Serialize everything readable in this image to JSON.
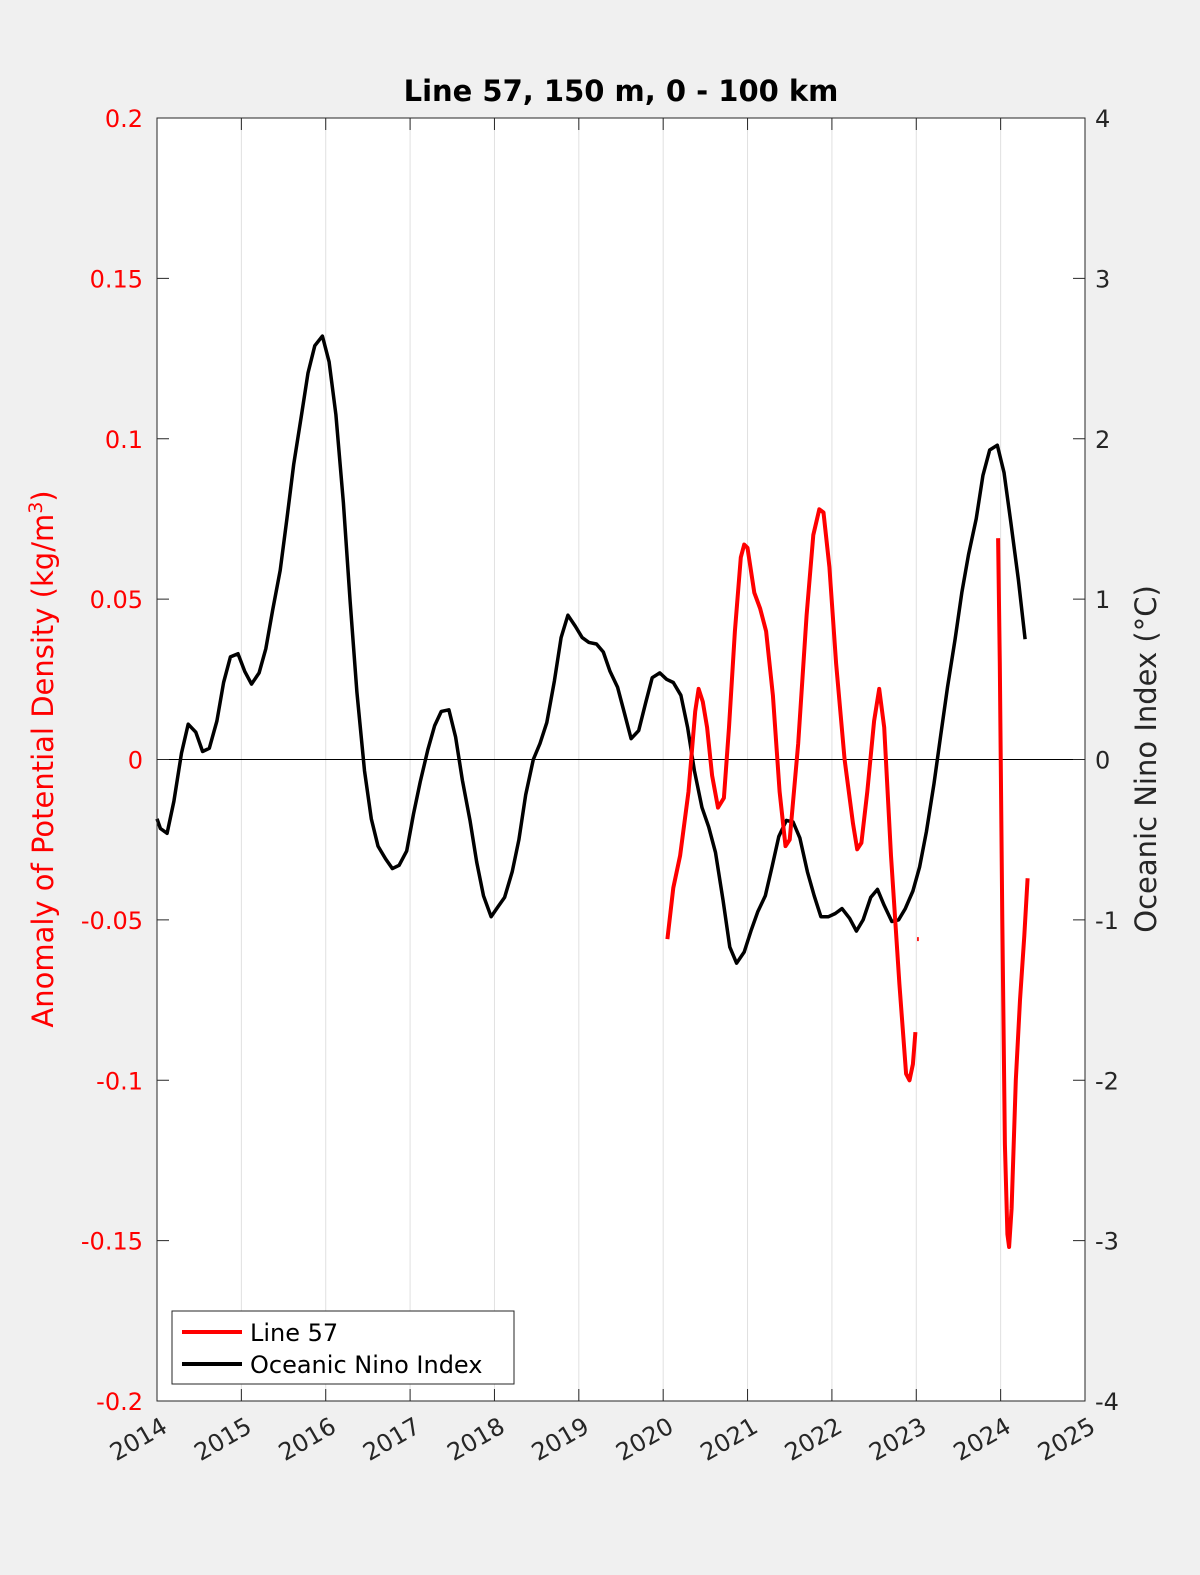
{
  "chart_data": {
    "type": "line",
    "title": "Line 57, 150 m, 0 - 100 km",
    "ylabel_left": {
      "text": "Anomaly of Potential Density (kg/m",
      "sup": "3",
      "tail": ")"
    },
    "ylabel_right": "Oceanic Nino Index (°C)",
    "xlim": [
      2014,
      2025
    ],
    "ylim_left": [
      -0.2,
      0.2
    ],
    "ylim_right": [
      -4,
      4
    ],
    "x_ticks": [
      "2014",
      "2015",
      "2016",
      "2017",
      "2018",
      "2019",
      "2020",
      "2021",
      "2022",
      "2023",
      "2024",
      "2025"
    ],
    "y_ticks_left": [
      "0.2",
      "0.15",
      "0.1",
      "0.05",
      "0",
      "-0.05",
      "-0.1",
      "-0.15",
      "-0.2"
    ],
    "y_ticks_right": [
      "4",
      "3",
      "2",
      "1",
      "0",
      "-1",
      "-2",
      "-3",
      "-4"
    ],
    "grid": "vertical",
    "legend_position": "bottom-left",
    "colors": {
      "line57": "#ff0000",
      "oni": "#000000",
      "zero_line": "#000000",
      "grid": "#e0e0e0"
    },
    "series": [
      {
        "name": "Line 57",
        "axis": "left",
        "segments": [
          [
            [
              2020.05,
              -0.056
            ],
            [
              2020.12,
              -0.04
            ],
            [
              2020.2,
              -0.03
            ],
            [
              2020.3,
              -0.01
            ],
            [
              2020.38,
              0.015
            ],
            [
              2020.42,
              0.022
            ],
            [
              2020.47,
              0.018
            ],
            [
              2020.52,
              0.01
            ],
            [
              2020.58,
              -0.005
            ],
            [
              2020.65,
              -0.015
            ],
            [
              2020.72,
              -0.012
            ],
            [
              2020.78,
              0.01
            ],
            [
              2020.85,
              0.04
            ],
            [
              2020.92,
              0.063
            ],
            [
              2020.96,
              0.067
            ],
            [
              2021.0,
              0.066
            ],
            [
              2021.08,
              0.052
            ],
            [
              2021.15,
              0.047
            ],
            [
              2021.22,
              0.04
            ],
            [
              2021.3,
              0.02
            ],
            [
              2021.38,
              -0.01
            ],
            [
              2021.45,
              -0.027
            ],
            [
              2021.5,
              -0.025
            ],
            [
              2021.6,
              0.005
            ],
            [
              2021.7,
              0.045
            ],
            [
              2021.78,
              0.07
            ],
            [
              2021.85,
              0.078
            ],
            [
              2021.9,
              0.077
            ],
            [
              2021.97,
              0.06
            ],
            [
              2022.05,
              0.03
            ],
            [
              2022.15,
              0.0
            ],
            [
              2022.25,
              -0.02
            ],
            [
              2022.3,
              -0.028
            ],
            [
              2022.35,
              -0.026
            ],
            [
              2022.42,
              -0.01
            ],
            [
              2022.5,
              0.012
            ],
            [
              2022.56,
              0.022
            ],
            [
              2022.62,
              0.01
            ],
            [
              2022.7,
              -0.03
            ],
            [
              2022.8,
              -0.07
            ],
            [
              2022.88,
              -0.098
            ],
            [
              2022.92,
              -0.1
            ],
            [
              2022.96,
              -0.095
            ],
            [
              2022.99,
              -0.085
            ]
          ],
          [
            [
              2023.01,
              -0.056
            ],
            [
              2023.03,
              -0.056
            ]
          ],
          [
            [
              2023.97,
              0.069
            ],
            [
              2023.99,
              0.03
            ],
            [
              2024.02,
              -0.05
            ],
            [
              2024.05,
              -0.12
            ],
            [
              2024.08,
              -0.148
            ],
            [
              2024.1,
              -0.152
            ],
            [
              2024.13,
              -0.14
            ],
            [
              2024.18,
              -0.1
            ],
            [
              2024.23,
              -0.075
            ],
            [
              2024.28,
              -0.055
            ],
            [
              2024.32,
              -0.037
            ]
          ]
        ]
      },
      {
        "name": "Oceanic Nino Index",
        "axis": "right",
        "points": [
          [
            2014.0,
            -0.37
          ],
          [
            2014.04,
            -0.43
          ],
          [
            2014.12,
            -0.46
          ],
          [
            2014.2,
            -0.26
          ],
          [
            2014.29,
            0.04
          ],
          [
            2014.37,
            0.22
          ],
          [
            2014.46,
            0.17
          ],
          [
            2014.54,
            0.05
          ],
          [
            2014.62,
            0.07
          ],
          [
            2014.71,
            0.24
          ],
          [
            2014.79,
            0.48
          ],
          [
            2014.87,
            0.64
          ],
          [
            2014.96,
            0.66
          ],
          [
            2015.04,
            0.55
          ],
          [
            2015.12,
            0.47
          ],
          [
            2015.21,
            0.54
          ],
          [
            2015.29,
            0.69
          ],
          [
            2015.37,
            0.93
          ],
          [
            2015.46,
            1.18
          ],
          [
            2015.54,
            1.5
          ],
          [
            2015.62,
            1.84
          ],
          [
            2015.71,
            2.14
          ],
          [
            2015.79,
            2.41
          ],
          [
            2015.87,
            2.58
          ],
          [
            2015.96,
            2.64
          ],
          [
            2016.04,
            2.48
          ],
          [
            2016.12,
            2.15
          ],
          [
            2016.21,
            1.6
          ],
          [
            2016.29,
            0.98
          ],
          [
            2016.37,
            0.42
          ],
          [
            2016.46,
            -0.07
          ],
          [
            2016.54,
            -0.37
          ],
          [
            2016.62,
            -0.54
          ],
          [
            2016.71,
            -0.62
          ],
          [
            2016.79,
            -0.68
          ],
          [
            2016.87,
            -0.66
          ],
          [
            2016.96,
            -0.57
          ],
          [
            2017.04,
            -0.34
          ],
          [
            2017.12,
            -0.14
          ],
          [
            2017.21,
            0.06
          ],
          [
            2017.29,
            0.21
          ],
          [
            2017.37,
            0.3
          ],
          [
            2017.46,
            0.31
          ],
          [
            2017.54,
            0.14
          ],
          [
            2017.62,
            -0.13
          ],
          [
            2017.71,
            -0.38
          ],
          [
            2017.79,
            -0.64
          ],
          [
            2017.87,
            -0.85
          ],
          [
            2017.96,
            -0.98
          ],
          [
            2018.04,
            -0.92
          ],
          [
            2018.12,
            -0.86
          ],
          [
            2018.21,
            -0.7
          ],
          [
            2018.29,
            -0.5
          ],
          [
            2018.37,
            -0.22
          ],
          [
            2018.46,
            0.0
          ],
          [
            2018.54,
            0.1
          ],
          [
            2018.62,
            0.23
          ],
          [
            2018.71,
            0.49
          ],
          [
            2018.79,
            0.76
          ],
          [
            2018.87,
            0.9
          ],
          [
            2018.96,
            0.83
          ],
          [
            2019.04,
            0.76
          ],
          [
            2019.12,
            0.73
          ],
          [
            2019.21,
            0.72
          ],
          [
            2019.29,
            0.67
          ],
          [
            2019.37,
            0.55
          ],
          [
            2019.46,
            0.45
          ],
          [
            2019.54,
            0.29
          ],
          [
            2019.62,
            0.13
          ],
          [
            2019.71,
            0.18
          ],
          [
            2019.79,
            0.35
          ],
          [
            2019.87,
            0.51
          ],
          [
            2019.96,
            0.54
          ],
          [
            2020.04,
            0.5
          ],
          [
            2020.12,
            0.48
          ],
          [
            2020.21,
            0.4
          ],
          [
            2020.29,
            0.2
          ],
          [
            2020.37,
            -0.07
          ],
          [
            2020.46,
            -0.3
          ],
          [
            2020.54,
            -0.42
          ],
          [
            2020.62,
            -0.58
          ],
          [
            2020.71,
            -0.88
          ],
          [
            2020.79,
            -1.17
          ],
          [
            2020.87,
            -1.27
          ],
          [
            2020.96,
            -1.2
          ],
          [
            2021.04,
            -1.07
          ],
          [
            2021.12,
            -0.95
          ],
          [
            2021.21,
            -0.85
          ],
          [
            2021.29,
            -0.67
          ],
          [
            2021.37,
            -0.48
          ],
          [
            2021.46,
            -0.38
          ],
          [
            2021.54,
            -0.39
          ],
          [
            2021.62,
            -0.49
          ],
          [
            2021.71,
            -0.7
          ],
          [
            2021.79,
            -0.85
          ],
          [
            2021.87,
            -0.98
          ],
          [
            2021.96,
            -0.98
          ],
          [
            2022.04,
            -0.96
          ],
          [
            2022.12,
            -0.93
          ],
          [
            2022.21,
            -0.99
          ],
          [
            2022.29,
            -1.07
          ],
          [
            2022.37,
            -1.0
          ],
          [
            2022.46,
            -0.86
          ],
          [
            2022.54,
            -0.81
          ],
          [
            2022.62,
            -0.91
          ],
          [
            2022.71,
            -1.01
          ],
          [
            2022.79,
            -1.0
          ],
          [
            2022.87,
            -0.93
          ],
          [
            2022.96,
            -0.82
          ],
          [
            2023.04,
            -0.67
          ],
          [
            2023.12,
            -0.45
          ],
          [
            2023.21,
            -0.15
          ],
          [
            2023.29,
            0.15
          ],
          [
            2023.37,
            0.45
          ],
          [
            2023.46,
            0.75
          ],
          [
            2023.54,
            1.04
          ],
          [
            2023.62,
            1.28
          ],
          [
            2023.71,
            1.5
          ],
          [
            2023.79,
            1.77
          ],
          [
            2023.87,
            1.93
          ],
          [
            2023.96,
            1.96
          ],
          [
            2024.04,
            1.79
          ],
          [
            2024.12,
            1.48
          ],
          [
            2024.21,
            1.12
          ],
          [
            2024.29,
            0.75
          ]
        ]
      }
    ]
  }
}
